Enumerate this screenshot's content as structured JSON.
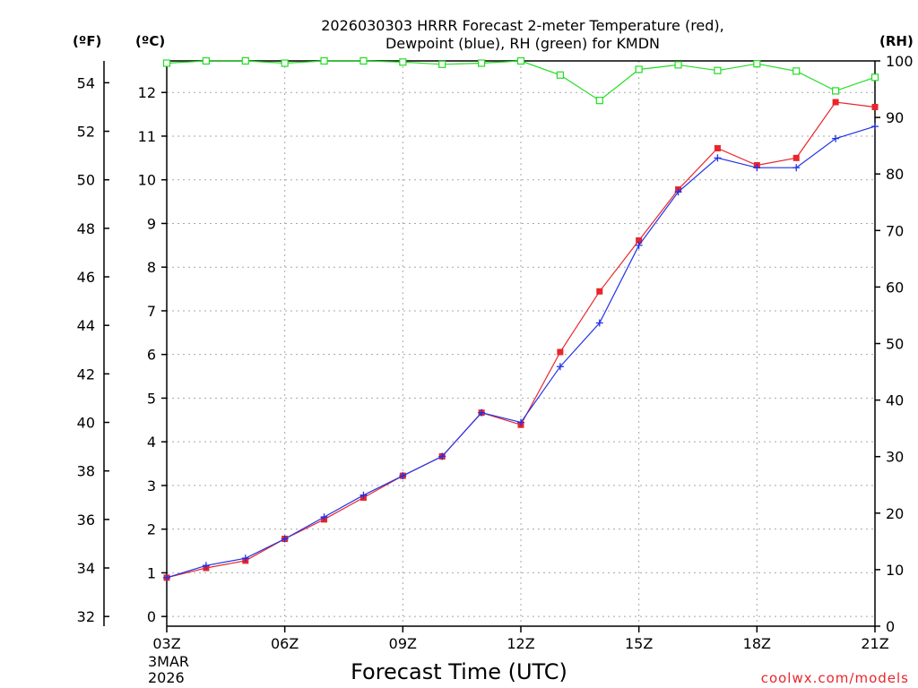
{
  "chart_data": {
    "type": "line",
    "title_line1": "2026030303 HRRR Forecast 2-meter Temperature (red),",
    "title_line2": "Dewpoint (blue), RH (green) for KMDN",
    "xlabel": "Forecast Time (UTC)",
    "date_label_line1": "3MAR",
    "date_label_line2": "2026",
    "credit": "coolwx.com/models",
    "unit_labels": {
      "fahrenheit": "(ºF)",
      "celsius": "(ºC)",
      "rh": "(RH)"
    },
    "x": [
      3,
      4,
      5,
      6,
      7,
      8,
      9,
      10,
      11,
      12,
      13,
      14,
      15,
      16,
      17,
      18,
      19,
      20,
      21
    ],
    "xlim": [
      3,
      21
    ],
    "x_ticks": [
      3,
      6,
      9,
      12,
      15,
      18,
      21
    ],
    "x_tick_labels": [
      "03Z",
      "06Z",
      "09Z",
      "12Z",
      "15Z",
      "18Z",
      "21Z"
    ],
    "ylim_fahrenheit": [
      31.6,
      54.9
    ],
    "y_ticks_fahrenheit": [
      32,
      34,
      36,
      38,
      40,
      42,
      44,
      46,
      48,
      50,
      52,
      54
    ],
    "y_tick_labels_fahrenheit": [
      "32",
      "34",
      "36",
      "38",
      "40",
      "42",
      "44",
      "46",
      "48",
      "50",
      "52",
      "54"
    ],
    "y_ticks_celsius": [
      0,
      1,
      2,
      3,
      4,
      5,
      6,
      7,
      8,
      9,
      10,
      11,
      12
    ],
    "y_tick_labels_celsius": [
      "0",
      "1",
      "2",
      "3",
      "4",
      "5",
      "6",
      "7",
      "8",
      "9",
      "10",
      "11",
      "12"
    ],
    "ylim_rh": [
      0,
      100
    ],
    "y_ticks_rh": [
      0,
      10,
      20,
      30,
      40,
      50,
      60,
      70,
      80,
      90,
      100
    ],
    "y_tick_labels_rh": [
      "0",
      "10",
      "20",
      "30",
      "40",
      "50",
      "60",
      "70",
      "80",
      "90",
      "100"
    ],
    "series": [
      {
        "name": "Temperature",
        "units": "°F",
        "color": "#e8262b",
        "marker": "square-filled",
        "values": [
          33.6,
          34.0,
          34.3,
          35.2,
          36.0,
          36.9,
          37.8,
          38.6,
          40.4,
          39.9,
          42.9,
          45.4,
          47.5,
          49.6,
          51.3,
          50.6,
          50.9,
          53.2,
          53.0
        ]
      },
      {
        "name": "Dewpoint",
        "units": "°F",
        "color": "#2233e6",
        "marker": "plus",
        "values": [
          33.6,
          34.1,
          34.4,
          35.2,
          36.1,
          37.0,
          37.8,
          38.6,
          40.4,
          40.0,
          42.3,
          44.1,
          47.3,
          49.5,
          50.9,
          50.5,
          50.5,
          51.7,
          52.2
        ]
      },
      {
        "name": "RH",
        "units": "%",
        "color": "#22dd22",
        "marker": "square-open",
        "values": [
          99.6,
          100,
          100,
          99.6,
          100,
          100,
          99.8,
          99.4,
          99.6,
          100,
          97.5,
          93,
          98.5,
          99.3,
          98.3,
          99.5,
          98.2,
          94.7,
          97.1
        ]
      }
    ]
  }
}
